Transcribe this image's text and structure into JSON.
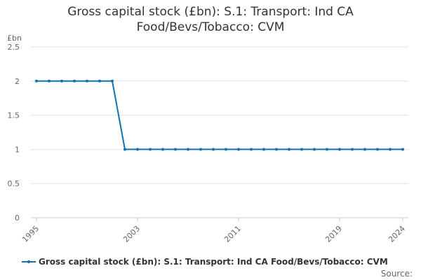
{
  "chart_data": {
    "type": "line",
    "title_lines": [
      "Gross capital stock (£bn): S.1: Transport: Ind CA",
      "Food/Bevs/Tobacco: CVM"
    ],
    "ylabel": "£bn",
    "xlabel": "",
    "ylim": [
      0,
      2.5
    ],
    "yticks": [
      "0",
      "0.5",
      "1",
      "1.5",
      "2",
      "2.5"
    ],
    "xlim": [
      1995,
      2024
    ],
    "xticks": [
      "1995",
      "2003",
      "2011",
      "2019",
      "2024"
    ],
    "grid": true,
    "legend_position": "bottom",
    "series": [
      {
        "name": "Gross capital stock (£bn): S.1: Transport: Ind CA Food/Bevs/Tobacco: CVM",
        "color": "#0f72b3",
        "x": [
          1995,
          1996,
          1997,
          1998,
          1999,
          2000,
          2001,
          2002,
          2003,
          2004,
          2005,
          2006,
          2007,
          2008,
          2009,
          2010,
          2011,
          2012,
          2013,
          2014,
          2015,
          2016,
          2017,
          2018,
          2019,
          2020,
          2021,
          2022,
          2023,
          2024
        ],
        "values": [
          2,
          2,
          2,
          2,
          2,
          2,
          2,
          1,
          1,
          1,
          1,
          1,
          1,
          1,
          1,
          1,
          1,
          1,
          1,
          1,
          1,
          1,
          1,
          1,
          1,
          1,
          1,
          1,
          1,
          1
        ]
      }
    ]
  },
  "source_label": "Source:"
}
